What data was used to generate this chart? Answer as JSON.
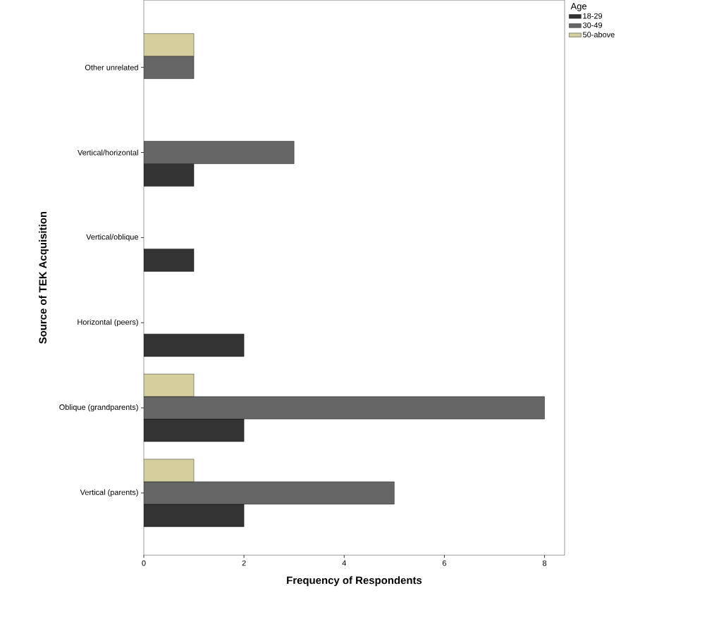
{
  "chart_data": {
    "type": "bar",
    "orientation": "horizontal",
    "xlabel": "Frequency of Respondents",
    "ylabel": "Source of TEK Acquisition",
    "legend_title": "Age",
    "legend": "top right",
    "categories": [
      "Other unrelated",
      "Vertical/horizontal",
      "Vertical/oblique",
      "Horizontal (peers)",
      "Oblique (grandparents)",
      "Vertical (parents)"
    ],
    "series": [
      {
        "name": "18-29",
        "color": "#333333",
        "values": [
          null,
          1,
          1,
          2,
          2,
          2
        ]
      },
      {
        "name": "30-49",
        "color": "#666666",
        "values": [
          1,
          3,
          null,
          null,
          8,
          5
        ]
      },
      {
        "name": "50-above",
        "color": "#d4cf9c",
        "values": [
          1,
          null,
          null,
          null,
          1,
          1
        ]
      }
    ],
    "xlim": [
      0,
      8.4
    ],
    "xticks": [
      0,
      2,
      4,
      6,
      8
    ],
    "grid": false
  }
}
